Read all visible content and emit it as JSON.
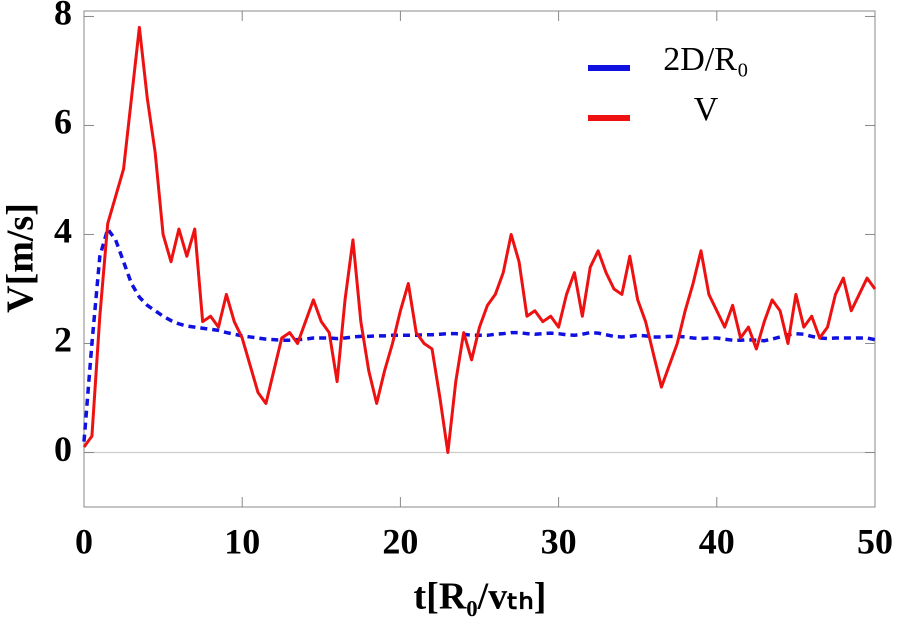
{
  "chart_data": {
    "type": "line",
    "xlabel": "t[R₀/vₜₕ]",
    "ylabel": "V[m/s]",
    "x": [
      0,
      0.5,
      1,
      1.5,
      2,
      2.5,
      3,
      3.5,
      4,
      4.5,
      5,
      5.5,
      6,
      6.5,
      7,
      7.5,
      8,
      8.5,
      9,
      9.5,
      10,
      10.5,
      11,
      11.5,
      12,
      12.5,
      13,
      13.5,
      14,
      14.5,
      15,
      15.5,
      16,
      16.5,
      17,
      17.5,
      18,
      18.5,
      19,
      19.5,
      20,
      20.5,
      21,
      21.5,
      22,
      22.5,
      23,
      23.5,
      24,
      24.5,
      25,
      25.5,
      26,
      26.5,
      27,
      27.5,
      28,
      28.5,
      29,
      29.5,
      30,
      30.5,
      31,
      31.5,
      32,
      32.5,
      33,
      33.5,
      34,
      34.5,
      35,
      35.5,
      36,
      36.5,
      37,
      37.5,
      38,
      38.5,
      39,
      39.5,
      40,
      40.5,
      41,
      41.5,
      42,
      42.5,
      43,
      43.5,
      44,
      44.5,
      45,
      45.5,
      46,
      46.5,
      47,
      47.5,
      48,
      48.5,
      49,
      49.5,
      50
    ],
    "series": [
      {
        "name": "2D/R₀",
        "color": "#1010e0",
        "dashed": true,
        "values": [
          0.2,
          2.0,
          3.6,
          4.1,
          3.9,
          3.5,
          3.1,
          2.85,
          2.7,
          2.6,
          2.5,
          2.42,
          2.36,
          2.32,
          2.3,
          2.28,
          2.26,
          2.24,
          2.2,
          2.17,
          2.14,
          2.12,
          2.1,
          2.08,
          2.07,
          2.06,
          2.06,
          2.07,
          2.08,
          2.1,
          2.1,
          2.1,
          2.09,
          2.1,
          2.12,
          2.13,
          2.13,
          2.14,
          2.14,
          2.15,
          2.15,
          2.15,
          2.15,
          2.16,
          2.16,
          2.17,
          2.18,
          2.18,
          2.17,
          2.15,
          2.15,
          2.15,
          2.17,
          2.18,
          2.2,
          2.2,
          2.18,
          2.17,
          2.18,
          2.19,
          2.18,
          2.16,
          2.15,
          2.17,
          2.2,
          2.19,
          2.16,
          2.13,
          2.12,
          2.13,
          2.15,
          2.14,
          2.12,
          2.12,
          2.13,
          2.13,
          2.12,
          2.1,
          2.09,
          2.1,
          2.1,
          2.08,
          2.06,
          2.06,
          2.07,
          2.06,
          2.05,
          2.08,
          2.12,
          2.16,
          2.18,
          2.17,
          2.13,
          2.1,
          2.09,
          2.1,
          2.1,
          2.1,
          2.1,
          2.1,
          2.07
        ]
      },
      {
        "name": "V",
        "color": "#ee1111",
        "dashed": false,
        "values": [
          0.1,
          0.3,
          2.5,
          4.2,
          4.7,
          5.2,
          6.5,
          7.8,
          6.5,
          5.5,
          4.0,
          3.5,
          4.1,
          3.6,
          4.1,
          2.4,
          2.5,
          2.3,
          2.9,
          2.4,
          2.1,
          1.6,
          1.1,
          0.9,
          1.5,
          2.1,
          2.2,
          2.0,
          2.4,
          2.8,
          2.4,
          2.2,
          1.3,
          2.8,
          3.9,
          2.4,
          1.5,
          0.9,
          1.5,
          2.0,
          2.6,
          3.1,
          2.2,
          2.0,
          1.9,
          1.0,
          0.0,
          1.3,
          2.2,
          1.7,
          2.3,
          2.7,
          2.9,
          3.3,
          4.0,
          3.5,
          2.5,
          2.6,
          2.4,
          2.5,
          2.3,
          2.9,
          3.3,
          2.5,
          3.4,
          3.7,
          3.3,
          3.0,
          2.9,
          3.6,
          2.8,
          2.4,
          1.8,
          1.2,
          1.6,
          2.0,
          2.6,
          3.1,
          3.7,
          2.9,
          2.6,
          2.3,
          2.7,
          2.1,
          2.3,
          1.9,
          2.4,
          2.8,
          2.6,
          2.0,
          2.9,
          2.3,
          2.5,
          2.1,
          2.3,
          2.9,
          3.2,
          2.6,
          2.9,
          3.2,
          3.0
        ]
      }
    ],
    "xlim": [
      0,
      50
    ],
    "xticks": [
      0,
      10,
      20,
      30,
      40,
      50
    ],
    "ylim": [
      -1,
      8.1
    ],
    "yticks": [
      0,
      2,
      4,
      6,
      8
    ],
    "legend": "upper right",
    "zero_line": true
  }
}
